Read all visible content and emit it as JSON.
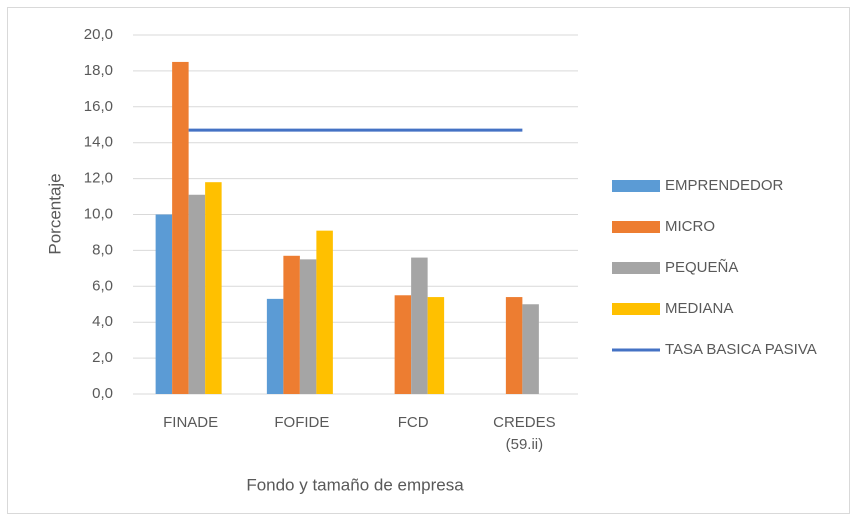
{
  "chart_data": {
    "type": "bar",
    "ylabel": "Porcentaje",
    "xlabel": "Fondo y tamaño de empresa",
    "categories": [
      "FINADE",
      "FOFIDE",
      "FCD",
      "CREDES (59.ii)"
    ],
    "series": [
      {
        "name": "EMPRENDEDOR",
        "color": "#5b9bd5",
        "values": [
          10.0,
          5.3,
          null,
          null
        ]
      },
      {
        "name": "MICRO",
        "color": "#ed7d31",
        "values": [
          18.5,
          7.7,
          5.5,
          5.4
        ]
      },
      {
        "name": "PEQUEÑA",
        "color": "#a5a5a5",
        "values": [
          11.1,
          7.5,
          7.6,
          5.0
        ]
      },
      {
        "name": "MEDIANA",
        "color": "#ffc000",
        "values": [
          11.8,
          9.1,
          5.4,
          null
        ]
      },
      {
        "name": "TASA BASICA PASIVA",
        "color": "#4472c4",
        "type": "line",
        "values": [
          14.7,
          14.7,
          14.7,
          14.7
        ]
      }
    ],
    "ylim": [
      0,
      20
    ],
    "yticks": [
      {
        "value": 0,
        "label": "0,0"
      },
      {
        "value": 2,
        "label": "2,0"
      },
      {
        "value": 4,
        "label": "4,0"
      },
      {
        "value": 6,
        "label": "6,0"
      },
      {
        "value": 8,
        "label": "8,0"
      },
      {
        "value": 10,
        "label": "10,0"
      },
      {
        "value": 12,
        "label": "12,0"
      },
      {
        "value": 14,
        "label": "14,0"
      },
      {
        "value": 16,
        "label": "16,0"
      },
      {
        "value": 18,
        "label": "18,0"
      },
      {
        "value": 20,
        "label": "20,0"
      }
    ],
    "grid": true,
    "legend": "right"
  }
}
